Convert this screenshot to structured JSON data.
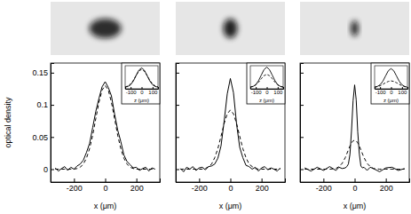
{
  "chart_data": [
    {
      "type": "line",
      "xlabel": "x (μm)",
      "ylabel": "optical density",
      "xlim": [
        -350,
        350
      ],
      "ylim": [
        -0.02,
        0.165
      ],
      "xticks": [
        -200,
        0,
        200
      ],
      "yticks": [
        0,
        0.05,
        0.1,
        0.15
      ],
      "x": [
        -320,
        -300,
        -280,
        -260,
        -240,
        -220,
        -200,
        -180,
        -160,
        -140,
        -120,
        -100,
        -80,
        -60,
        -40,
        -20,
        0,
        20,
        40,
        60,
        80,
        100,
        120,
        140,
        160,
        180,
        200,
        220,
        240,
        260,
        280,
        300,
        320
      ],
      "series": [
        {
          "color": "#000000",
          "line_style": "solid",
          "values": [
            0.002,
            -0.003,
            0.001,
            0.004,
            -0.002,
            0.003,
            0.0,
            0.005,
            0.008,
            0.014,
            0.026,
            0.04,
            0.065,
            0.09,
            0.11,
            0.128,
            0.136,
            0.127,
            0.114,
            0.086,
            0.061,
            0.043,
            0.022,
            0.012,
            0.007,
            0.002,
            0.003,
            -0.002,
            0.001,
            0.003,
            -0.003,
            0.002,
            0.0
          ]
        },
        {
          "color": "#000000",
          "line_style": "dashed",
          "values": [
            0,
            0,
            0,
            0,
            0,
            0,
            0,
            0.001,
            0.003,
            0.008,
            0.017,
            0.032,
            0.053,
            0.079,
            0.104,
            0.123,
            0.13,
            0.123,
            0.104,
            0.079,
            0.053,
            0.032,
            0.017,
            0.008,
            0.003,
            0.001,
            0,
            0,
            0,
            0,
            0,
            0,
            0
          ]
        }
      ],
      "inset": {
        "type": "line",
        "xlabel": "z (μm)",
        "tick_labels": "x",
        "xlim": [
          -150,
          150
        ],
        "ylim": [
          -0.01,
          0.15
        ],
        "xticks": [
          -100,
          0,
          100
        ],
        "x": [
          -150,
          -125,
          -100,
          -75,
          -50,
          -25,
          0,
          25,
          50,
          75,
          100,
          125,
          150
        ],
        "series": [
          {
            "color": "#000000",
            "line_style": "solid",
            "values": [
              0.0015,
              0.006,
              0.018,
              0.044,
              0.082,
              0.119,
              0.135,
              0.119,
              0.082,
              0.044,
              0.018,
              0.006,
              0.0015
            ]
          },
          {
            "color": "#000000",
            "line_style": "dashed",
            "values": [
              0.003,
              0.009,
              0.024,
              0.049,
              0.083,
              0.113,
              0.125,
              0.113,
              0.083,
              0.049,
              0.024,
              0.009,
              0.003
            ]
          }
        ]
      }
    },
    {
      "type": "line",
      "xlabel": "x (μm)",
      "tick_labels": "x",
      "xlim": [
        -350,
        350
      ],
      "ylim": [
        -0.02,
        0.165
      ],
      "xticks": [
        -200,
        0,
        200
      ],
      "yticks": [
        0,
        0.05,
        0.1,
        0.15
      ],
      "x": [
        -320,
        -300,
        -280,
        -260,
        -240,
        -220,
        -200,
        -180,
        -160,
        -140,
        -120,
        -100,
        -80,
        -60,
        -40,
        -20,
        0,
        20,
        40,
        60,
        80,
        100,
        120,
        140,
        160,
        180,
        200,
        220,
        240,
        260,
        280,
        300,
        320
      ],
      "series": [
        {
          "color": "#000000",
          "line_style": "solid",
          "values": [
            0.001,
            -0.004,
            0.003,
            0.0,
            0.004,
            -0.002,
            0.002,
            0.003,
            -0.001,
            0.004,
            0.005,
            0.008,
            0.017,
            0.036,
            0.074,
            0.117,
            0.141,
            0.119,
            0.07,
            0.034,
            0.018,
            0.006,
            0.004,
            0.0,
            0.003,
            -0.003,
            0.002,
            0.004,
            -0.001,
            0.002,
            0.0,
            -0.003,
            0.002
          ]
        },
        {
          "color": "#000000",
          "line_style": "dashed",
          "values": [
            0,
            0,
            0,
            0,
            0,
            0,
            0,
            0,
            0.001,
            0.004,
            0.008,
            0.018,
            0.032,
            0.051,
            0.071,
            0.086,
            0.092,
            0.086,
            0.071,
            0.051,
            0.032,
            0.018,
            0.008,
            0.004,
            0.001,
            0,
            0,
            0,
            0,
            0,
            0,
            0,
            0
          ]
        }
      ],
      "inset": {
        "type": "line",
        "xlabel": "z (μm)",
        "tick_labels": "x",
        "xlim": [
          -150,
          150
        ],
        "ylim": [
          -0.01,
          0.15
        ],
        "xticks": [
          -100,
          0,
          100
        ],
        "x": [
          -150,
          -125,
          -100,
          -75,
          -50,
          -25,
          0,
          25,
          50,
          75,
          100,
          125,
          150
        ],
        "series": [
          {
            "color": "#000000",
            "line_style": "solid",
            "values": [
              0.002,
              0.006,
              0.019,
              0.046,
              0.085,
              0.123,
              0.14,
              0.123,
              0.085,
              0.046,
              0.019,
              0.006,
              0.002
            ]
          },
          {
            "color": "#000000",
            "line_style": "dashed",
            "values": [
              0.002,
              0.007,
              0.017,
              0.036,
              0.06,
              0.081,
              0.09,
              0.081,
              0.06,
              0.036,
              0.017,
              0.007,
              0.002
            ]
          }
        ]
      }
    },
    {
      "type": "line",
      "xlabel": "x (μm)",
      "tick_labels": "x",
      "xlim": [
        -350,
        350
      ],
      "ylim": [
        -0.02,
        0.165
      ],
      "xticks": [
        -200,
        0,
        200
      ],
      "yticks": [
        0,
        0.05,
        0.1,
        0.15
      ],
      "x": [
        -320,
        -280,
        -240,
        -200,
        -160,
        -120,
        -100,
        -80,
        -60,
        -50,
        -40,
        -30,
        -20,
        -10,
        0,
        10,
        20,
        30,
        40,
        50,
        60,
        80,
        100,
        120,
        160,
        200,
        240,
        280,
        320
      ],
      "series": [
        {
          "color": "#000000",
          "line_style": "solid",
          "values": [
            0.002,
            -0.003,
            0.003,
            -0.002,
            0.004,
            -0.002,
            0.003,
            0.001,
            0.002,
            0.004,
            0.008,
            0.023,
            0.06,
            0.106,
            0.131,
            0.108,
            0.058,
            0.024,
            0.005,
            0.002,
            0.003,
            -0.002,
            0.003,
            0.001,
            -0.004,
            0.002,
            0.003,
            -0.002,
            0.001
          ]
        },
        {
          "color": "#000000",
          "line_style": "dashed",
          "values": [
            0,
            0,
            0,
            0,
            0.0,
            0.001,
            0.004,
            0.009,
            0.018,
            0.024,
            0.03,
            0.036,
            0.041,
            0.044,
            0.045,
            0.044,
            0.041,
            0.036,
            0.03,
            0.024,
            0.018,
            0.009,
            0.004,
            0.001,
            0,
            0,
            0,
            0,
            0
          ]
        }
      ],
      "inset": {
        "type": "line",
        "xlabel": "z (μm)",
        "tick_labels": "x",
        "xlim": [
          -150,
          150
        ],
        "ylim": [
          -0.01,
          0.15
        ],
        "xticks": [
          -100,
          0,
          100
        ],
        "x": [
          -150,
          -125,
          -100,
          -75,
          -50,
          -25,
          0,
          25,
          50,
          75,
          100,
          125,
          150
        ],
        "series": [
          {
            "color": "#000000",
            "line_style": "solid",
            "values": [
              0.001,
              0.006,
              0.018,
              0.042,
              0.079,
              0.115,
              0.13,
              0.115,
              0.079,
              0.042,
              0.018,
              0.006,
              0.001
            ]
          },
          {
            "color": "#000000",
            "line_style": "dashed",
            "values": [
              0.002,
              0.005,
              0.011,
              0.021,
              0.032,
              0.041,
              0.045,
              0.041,
              0.032,
              0.021,
              0.011,
              0.005,
              0.002
            ]
          }
        ]
      }
    }
  ]
}
